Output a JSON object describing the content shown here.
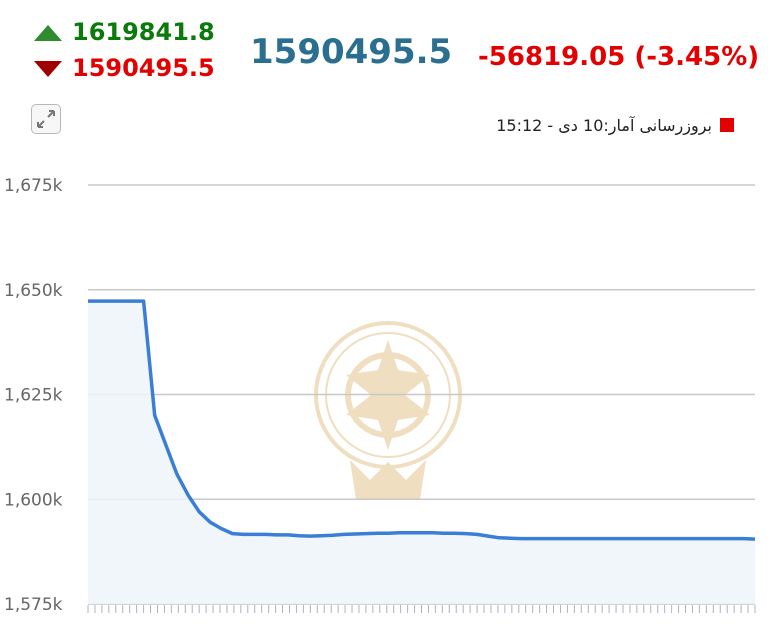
{
  "header": {
    "high_value": "1619841.8",
    "low_value": "1590495.5",
    "last_value": "1590495.5",
    "change_value": "-56819.05",
    "change_percent": "(-3.45%)",
    "update_text": "بروزرسانی آمار:10 دی - 15:12",
    "colors": {
      "up": "#0a7a0a",
      "down": "#e30000",
      "last": "#2a6f8f"
    },
    "icons": {
      "high": "triangle-up-icon",
      "low": "triangle-down-icon",
      "expand": "expand-icon",
      "legend": "red-square-icon"
    }
  },
  "chart_data": {
    "type": "area",
    "ylim": [
      1575000,
      1675000
    ],
    "yticks": [
      1575000,
      1600000,
      1625000,
      1650000,
      1675000
    ],
    "ytick_labels": [
      "1,575k",
      "1,600k",
      "1,625k",
      "1,650k",
      "1,675k"
    ],
    "grid": true,
    "line_color": "#3a7fd5",
    "fill_color": "#eef4fa",
    "x": [
      0,
      1,
      2,
      3,
      4,
      5,
      6,
      7,
      8,
      9,
      10,
      11,
      12,
      13,
      14,
      15,
      16,
      17,
      18,
      19,
      20,
      21,
      22,
      23,
      24,
      25,
      26,
      27,
      28,
      29,
      30,
      31,
      32,
      33,
      34,
      35,
      36,
      37,
      38,
      39,
      40,
      41,
      42,
      43,
      44,
      45,
      46,
      47,
      48,
      49,
      50,
      51,
      52,
      53,
      54,
      55,
      56,
      57,
      58,
      59,
      60
    ],
    "values": [
      1647300,
      1647300,
      1647300,
      1647300,
      1647300,
      1647300,
      1620000,
      1613000,
      1606000,
      1601000,
      1597000,
      1594500,
      1593000,
      1591800,
      1591600,
      1591600,
      1591600,
      1591500,
      1591500,
      1591300,
      1591200,
      1591300,
      1591400,
      1591600,
      1591700,
      1591800,
      1591900,
      1591900,
      1592000,
      1592000,
      1592000,
      1592000,
      1591900,
      1591900,
      1591800,
      1591600,
      1591200,
      1590800,
      1590700,
      1590600,
      1590600,
      1590600,
      1590600,
      1590600,
      1590600,
      1590600,
      1590600,
      1590600,
      1590600,
      1590600,
      1590600,
      1590600,
      1590600,
      1590600,
      1590600,
      1590600,
      1590600,
      1590600,
      1590600,
      1590600,
      1590500
    ]
  }
}
